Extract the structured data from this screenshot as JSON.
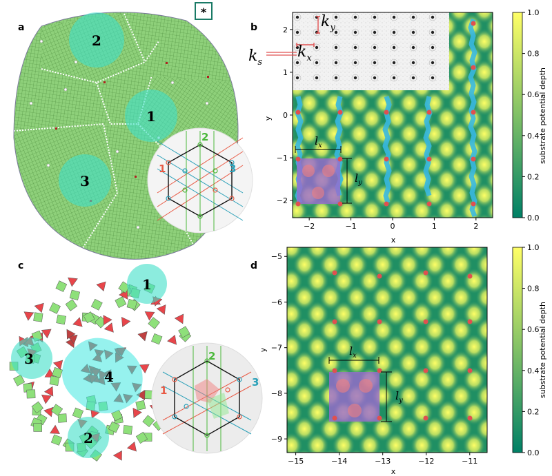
{
  "panels": {
    "a": {
      "letter": "a",
      "grain_labels": [
        "1",
        "2",
        "3"
      ],
      "star_label": "*"
    },
    "b": {
      "letter": "b"
    },
    "c": {
      "letter": "c",
      "grain_labels": [
        "1",
        "2",
        "3",
        "4"
      ]
    },
    "d": {
      "letter": "d"
    }
  },
  "inset": {
    "direction_labels": [
      "1",
      "2",
      "3"
    ],
    "colors": [
      "#e85a45",
      "#4ab83a",
      "#2aa0b8"
    ]
  },
  "fft_labels": {
    "ks": "k",
    "ks_sub": "s",
    "kx": "k",
    "kx_sub": "x",
    "ky": "k",
    "ky_sub": "y"
  },
  "cell_labels": {
    "lx": "l",
    "lx_sub": "x",
    "ly": "l",
    "ly_sub": "y"
  },
  "colorbar": {
    "label": "substrate potential depth",
    "ticks": [
      "0.0",
      "0.2",
      "0.4",
      "0.6",
      "0.8",
      "1.0"
    ],
    "colormap": "summer"
  },
  "colors": {
    "tile_green": "#8ee07a",
    "tile_red": "#e8454a",
    "highlight": "#40e0c8",
    "defect_red": "#e05050",
    "water_blue": "#38b8e0",
    "cell_purple": "#9a6ad0"
  },
  "chart_data": [
    {
      "id": "b",
      "type": "heatmap",
      "xlabel": "x",
      "ylabel": "y",
      "xlim": [
        -2.4,
        2.4
      ],
      "ylim": [
        -2.4,
        2.4
      ],
      "xticks": [
        "−2",
        "−1",
        "0",
        "1",
        "2"
      ],
      "yticks": [
        "−2",
        "−1",
        "0",
        "1",
        "2"
      ],
      "colorbar_label": "substrate potential depth",
      "colorbar_range": [
        0.0,
        1.0
      ]
    },
    {
      "id": "d",
      "type": "heatmap",
      "xlabel": "x",
      "ylabel": "y",
      "xlim": [
        -15.2,
        -10.6
      ],
      "ylim": [
        -9.3,
        -4.8
      ],
      "xticks": [
        "−15",
        "−14",
        "−13",
        "−12",
        "−11"
      ],
      "yticks": [
        "−9",
        "−8",
        "−7",
        "−6",
        "−5"
      ],
      "colorbar_label": "substrate potential depth",
      "colorbar_range": [
        0.0,
        1.0
      ]
    }
  ]
}
